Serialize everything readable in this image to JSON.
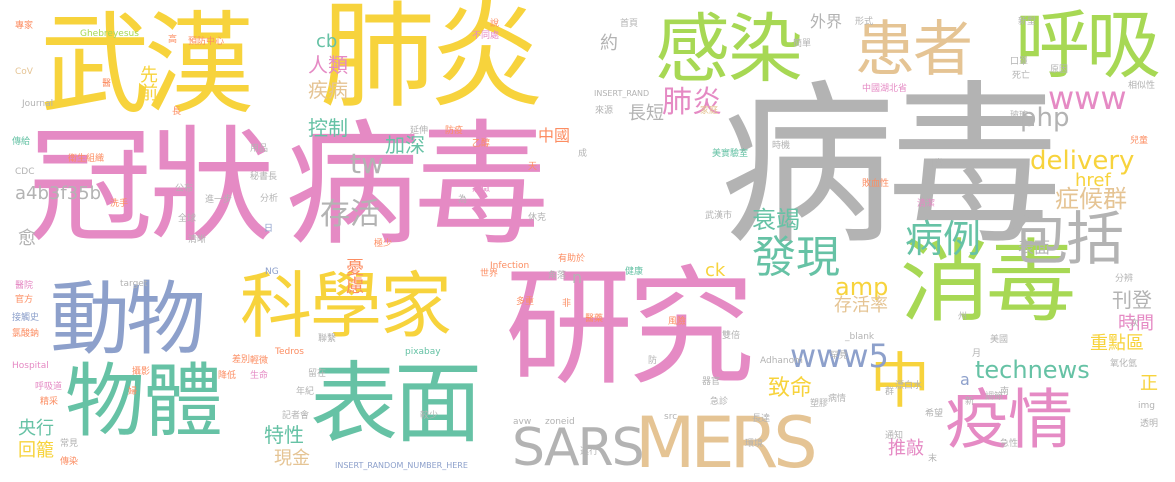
{
  "palette": {
    "yellow": "#f7d33c",
    "pink": "#e58ac4",
    "gray": "#b3b3b3",
    "green": "#a7d854",
    "teal": "#66c2a5",
    "blue": "#8da0cb",
    "orange": "#fc8d62",
    "tan": "#e5c494"
  },
  "words": [
    {
      "id": "bingdu",
      "text": "病毒"
    },
    {
      "id": "guanzhuang",
      "text": "冠狀"
    },
    {
      "id": "bingdu2",
      "text": "病毒"
    },
    {
      "id": "wuhan",
      "text": "武漢"
    },
    {
      "id": "feiyan",
      "text": "肺炎"
    },
    {
      "id": "yanjiu",
      "text": "研究"
    },
    {
      "id": "ganran",
      "text": "感染"
    },
    {
      "id": "huxi",
      "text": "呼吸"
    },
    {
      "id": "huanzhe",
      "text": "患者"
    },
    {
      "id": "xiaodu",
      "text": "消毒"
    },
    {
      "id": "kexuejia",
      "text": "科學家"
    },
    {
      "id": "dongwu",
      "text": "動物"
    },
    {
      "id": "wuti",
      "text": "物體"
    },
    {
      "id": "biaomian",
      "text": "表面"
    },
    {
      "id": "yiqing",
      "text": "疫情"
    },
    {
      "id": "mers",
      "text": "MERS"
    },
    {
      "id": "sars",
      "text": "SARS"
    },
    {
      "id": "baokuo",
      "text": "包括"
    },
    {
      "id": "zhong",
      "text": "中"
    },
    {
      "id": "faxian",
      "text": "發現"
    },
    {
      "id": "bingli",
      "text": "病例"
    },
    {
      "id": "cunhuo",
      "text": "存活"
    },
    {
      "id": "feiyan2",
      "text": "肺炎"
    },
    {
      "id": "www",
      "text": "www"
    },
    {
      "id": "www5",
      "text": "www5"
    },
    {
      "id": "delivery",
      "text": "delivery"
    },
    {
      "id": "technews",
      "text": "technews"
    },
    {
      "id": "zhenghouqun",
      "text": "症候群"
    },
    {
      "id": "a4b",
      "text": "a4b3f35b"
    },
    {
      "id": "renlei",
      "text": "人類"
    },
    {
      "id": "jibing",
      "text": "疾病"
    },
    {
      "id": "kongzhi",
      "text": "控制"
    },
    {
      "id": "jiashen",
      "text": "加深"
    },
    {
      "id": "shuairuo",
      "text": "衰竭"
    },
    {
      "id": "tw",
      "text": "tw"
    },
    {
      "id": "php",
      "text": "php"
    },
    {
      "id": "amp",
      "text": "amp"
    },
    {
      "id": "cb",
      "text": "cb"
    },
    {
      "id": "xianqian",
      "text": "先前"
    },
    {
      "id": "yue",
      "text": "約"
    },
    {
      "id": "waijie",
      "text": "外界"
    },
    {
      "id": "zhiming",
      "text": "致命"
    },
    {
      "id": "youlv",
      "text": "憂慮"
    },
    {
      "id": "cunhuolv",
      "text": "存活率"
    },
    {
      "id": "kandeng",
      "text": "刊登"
    },
    {
      "id": "shijian",
      "text": "時間"
    },
    {
      "id": "zhongdianqu",
      "text": "重點區"
    },
    {
      "id": "teding",
      "text": "特性"
    },
    {
      "id": "yanghang",
      "text": "央行"
    },
    {
      "id": "huilong",
      "text": "回籠"
    },
    {
      "id": "xianjin",
      "text": "現金"
    },
    {
      "id": "tuiqiao",
      "text": "推敲"
    },
    {
      "id": "biaomian2",
      "text": "表面"
    },
    {
      "id": "chang",
      "text": "長短"
    },
    {
      "id": "zhongguo",
      "text": "中國"
    },
    {
      "id": "yu",
      "text": "愈"
    },
    {
      "id": "ck",
      "text": "ck"
    },
    {
      "id": "href",
      "text": "href"
    },
    {
      "id": "n",
      "text": "n"
    },
    {
      "id": "a",
      "text": "a"
    },
    {
      "id": "zheng",
      "text": "正"
    },
    {
      "id": "zhuanjia",
      "text": "專家"
    },
    {
      "id": "ghebreyesus",
      "text": "Ghebreyesus"
    },
    {
      "id": "cov",
      "text": "CoV"
    },
    {
      "id": "journal",
      "text": "Journal"
    },
    {
      "id": "chuanji",
      "text": "傳給"
    },
    {
      "id": "cdc",
      "text": "CDC"
    },
    {
      "id": "yiyuan",
      "text": "醫院"
    },
    {
      "id": "guanfang",
      "text": "官方"
    },
    {
      "id": "jiechushi",
      "text": "接觸史"
    },
    {
      "id": "qingsuanyan",
      "text": "氯酸鈉"
    },
    {
      "id": "hospital",
      "text": "Hospital"
    },
    {
      "id": "huxidao",
      "text": "呼吸道"
    },
    {
      "id": "jingcai",
      "text": "精采"
    },
    {
      "id": "weisheng",
      "text": "衛生組織"
    },
    {
      "id": "yufang",
      "text": "預防中心"
    },
    {
      "id": "insert1",
      "text": "INSERT_RAND"
    },
    {
      "id": "insert2",
      "text": "INSERT_RANDOM_NUMBER_HERE"
    },
    {
      "id": "target",
      "text": "target"
    },
    {
      "id": "infection",
      "text": "Infection"
    },
    {
      "id": "pixabay",
      "text": "pixabay"
    },
    {
      "id": "tedros",
      "text": "Tedros"
    },
    {
      "id": "adhanom",
      "text": "Adhanom"
    },
    {
      "id": "blank",
      "text": "_blank"
    },
    {
      "id": "src",
      "text": "src"
    },
    {
      "id": "avw",
      "text": "avw"
    },
    {
      "id": "zoneid",
      "text": "zoneid"
    },
    {
      "id": "ng",
      "text": "NG"
    },
    {
      "id": "img",
      "text": "img"
    },
    {
      "id": "wuhanshi",
      "text": "武漢市"
    },
    {
      "id": "meiguo",
      "text": "美國"
    },
    {
      "id": "siwang",
      "text": "死亡"
    },
    {
      "id": "xinxing",
      "text": "新型"
    },
    {
      "id": "zhongguohubei",
      "text": "中國湖北省"
    },
    {
      "id": "shouye",
      "text": "首頁"
    },
    {
      "id": "jiankang",
      "text": "健康"
    },
    {
      "id": "shiyanshi",
      "text": "美實驗室"
    },
    {
      "id": "ribao",
      "text": "日常"
    },
    {
      "id": "xiangguan",
      "text": "相似性"
    },
    {
      "id": "yuanyin",
      "text": "原因"
    },
    {
      "id": "bolijie",
      "text": "玻璃"
    },
    {
      "id": "kouzhao",
      "text": "口罩"
    },
    {
      "id": "qingjie",
      "text": "清潔"
    },
    {
      "id": "baxue",
      "text": "敗血性"
    },
    {
      "id": "fenbian",
      "text": "分辨"
    },
    {
      "id": "yanghuaqing",
      "text": "氧化氫"
    },
    {
      "id": "tiaojie",
      "text": "調節"
    },
    {
      "id": "xiwang",
      "text": "希望"
    },
    {
      "id": "jixing",
      "text": "急性"
    },
    {
      "id": "touming",
      "text": "透明"
    },
    {
      "id": "ciyu",
      "text": "次"
    },
    {
      "id": "piaobai",
      "text": "漂白水"
    },
    {
      "id": "hanjian",
      "text": "罕見"
    },
    {
      "id": "sujiao",
      "text": "塑膠"
    },
    {
      "id": "qixiang",
      "text": "器官"
    },
    {
      "id": "changda",
      "text": "長達"
    },
    {
      "id": "jizhen",
      "text": "急診"
    },
    {
      "id": "bingqing",
      "text": "病情"
    },
    {
      "id": "huanjing",
      "text": "環境"
    },
    {
      "id": "youzhu",
      "text": "有助於"
    },
    {
      "id": "duozhong",
      "text": "多重"
    },
    {
      "id": "fengxian",
      "text": "風險"
    },
    {
      "id": "jiaoluo",
      "text": "角落"
    },
    {
      "id": "xiuke",
      "text": "休克"
    },
    {
      "id": "shijie",
      "text": "世界"
    },
    {
      "id": "jiating",
      "text": "家庭"
    },
    {
      "id": "yiyao",
      "text": "醫藥"
    },
    {
      "id": "sheying",
      "text": "攝影"
    },
    {
      "id": "shengming",
      "text": "生命"
    },
    {
      "id": "qingzhong",
      "text": "輕微"
    },
    {
      "id": "jishizhang",
      "text": "秘書長"
    },
    {
      "id": "yongpin",
      "text": "用品"
    },
    {
      "id": "jiyibu",
      "text": "進一步"
    },
    {
      "id": "xishou",
      "text": "洗手"
    },
    {
      "id": "fenxi",
      "text": "分析"
    },
    {
      "id": "gongbu",
      "text": "公布"
    },
    {
      "id": "quanqiu",
      "text": "全球"
    },
    {
      "id": "qingxi",
      "text": "清晰"
    },
    {
      "id": "ji",
      "text": "極少"
    },
    {
      "id": "lianlu",
      "text": "聯繫"
    },
    {
      "id": "bufang",
      "text": "不同處"
    },
    {
      "id": "yanjing",
      "text": "延伸"
    },
    {
      "id": "fangzhi",
      "text": "防疫"
    },
    {
      "id": "yichun",
      "text": "乙醇"
    },
    {
      "id": "laiyuan",
      "text": "來源"
    },
    {
      "id": "jianduan",
      "text": "簡單"
    },
    {
      "id": "bingzheng",
      "text": "病徵"
    },
    {
      "id": "xiaomi",
      "text": "較少"
    },
    {
      "id": "jiange",
      "text": "降低"
    },
    {
      "id": "jizhe",
      "text": "記者會"
    },
    {
      "id": "nianji",
      "text": "年紀"
    },
    {
      "id": "liuzai",
      "text": "留在"
    },
    {
      "id": "chayi",
      "text": "差別"
    },
    {
      "id": "changjian",
      "text": "常見"
    },
    {
      "id": "chuanran",
      "text": "傳染"
    },
    {
      "id": "gaoji",
      "text": "高"
    },
    {
      "id": "yi",
      "text": "醫"
    },
    {
      "id": "chang2",
      "text": "長"
    },
    {
      "id": "fu",
      "text": "婦"
    },
    {
      "id": "xin",
      "text": "新"
    },
    {
      "id": "qun",
      "text": "群"
    },
    {
      "id": "zhou",
      "text": "州"
    },
    {
      "id": "yue2",
      "text": "月"
    },
    {
      "id": "ri",
      "text": "日"
    },
    {
      "id": "fang",
      "text": "防"
    },
    {
      "id": "mo",
      "text": "末"
    },
    {
      "id": "nan",
      "text": "南"
    },
    {
      "id": "fei",
      "text": "非"
    },
    {
      "id": "wei",
      "text": "為"
    },
    {
      "id": "tian",
      "text": "天"
    },
    {
      "id": "shuo",
      "text": "說"
    },
    {
      "id": "erwu",
      "text": "兒童"
    },
    {
      "id": "shuangyi",
      "text": "雙倍"
    },
    {
      "id": "cheng",
      "text": "成"
    },
    {
      "id": "tongzhi",
      "text": "通知"
    },
    {
      "id": "jingxing",
      "text": "進行"
    },
    {
      "id": "shishi",
      "text": "時機"
    },
    {
      "id": "xingshi",
      "text": "形式"
    }
  ]
}
